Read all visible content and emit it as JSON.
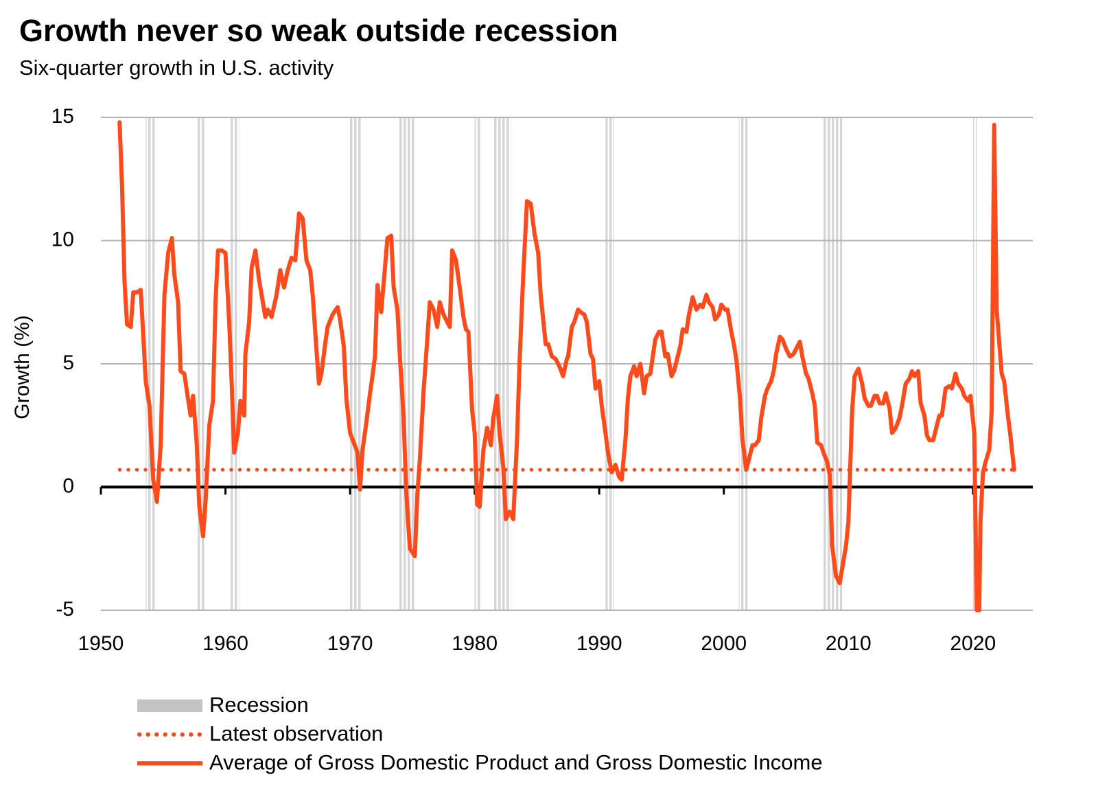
{
  "chart_data": {
    "type": "line",
    "title": "Growth never so weak outside recession",
    "subtitle": "Six-quarter  growth in U.S. activity",
    "y_label": "Growth (%)",
    "xlim": [
      1950,
      2024.8
    ],
    "xticks": [
      1950,
      1960,
      1970,
      1980,
      1990,
      2000,
      2010,
      2020
    ],
    "ylim": [
      -5,
      15
    ],
    "yticks": [
      -5,
      0,
      5,
      10,
      15
    ],
    "grid": true,
    "legend": "bottom",
    "series": [
      {
        "name": "Recession",
        "type": "band",
        "color": "#d6d6d6",
        "ranges": [
          [
            1953.6,
            1954.4
          ],
          [
            1957.7,
            1958.3
          ],
          [
            1960.3,
            1961.1
          ],
          [
            1969.9,
            1970.9
          ],
          [
            1973.9,
            1975.2
          ],
          [
            1980.0,
            1980.5
          ],
          [
            1981.5,
            1982.9
          ],
          [
            1990.5,
            1991.2
          ],
          [
            2001.2,
            2001.9
          ],
          [
            2007.9,
            2009.5
          ],
          [
            2020.0,
            2020.3
          ]
        ]
      },
      {
        "name": "Latest observation",
        "type": "line",
        "style": "dotted",
        "color": "#ff4a1c",
        "x": [
          1951.5,
          2023.3
        ],
        "values": [
          0.7,
          0.7
        ]
      },
      {
        "name": "Average of Gross Domestic Product and Gross Domestic Income",
        "type": "line",
        "style": "solid",
        "color": "#ff4a1c",
        "x": [
          1951.5,
          1951.7,
          1951.9,
          1952.1,
          1952.4,
          1952.6,
          1952.9,
          1953.2,
          1953.6,
          1953.9,
          1954.2,
          1954.5,
          1954.8,
          1955.1,
          1955.4,
          1955.7,
          1955.9,
          1956.2,
          1956.4,
          1956.7,
          1956.9,
          1957.2,
          1957.4,
          1957.7,
          1957.9,
          1958.2,
          1958.4,
          1958.7,
          1959.0,
          1959.2,
          1959.4,
          1959.7,
          1960.0,
          1960.3,
          1960.5,
          1960.7,
          1961.0,
          1961.2,
          1961.5,
          1961.6,
          1961.9,
          1962.1,
          1962.4,
          1962.7,
          1963.2,
          1963.4,
          1963.7,
          1964.1,
          1964.4,
          1964.7,
          1965.0,
          1965.3,
          1965.6,
          1965.9,
          1966.2,
          1966.5,
          1966.8,
          1967.0,
          1967.3,
          1967.5,
          1967.7,
          1968.0,
          1968.2,
          1968.6,
          1969.0,
          1969.2,
          1969.5,
          1969.7,
          1970.0,
          1970.3,
          1970.6,
          1970.8,
          1971.0,
          1971.3,
          1971.6,
          1971.8,
          1972.0,
          1972.2,
          1972.5,
          1972.8,
          1973.0,
          1973.3,
          1973.5,
          1973.8,
          1974.0,
          1974.3,
          1974.5,
          1974.8,
          1975.2,
          1975.4,
          1975.6,
          1975.9,
          1976.1,
          1976.4,
          1976.7,
          1977.0,
          1977.2,
          1977.5,
          1977.8,
          1978.0,
          1978.2,
          1978.5,
          1978.8,
          1979.1,
          1979.3,
          1979.5,
          1979.8,
          1980.0,
          1980.2,
          1980.4,
          1980.7,
          1981.0,
          1981.3,
          1981.5,
          1981.8,
          1982.0,
          1982.3,
          1982.5,
          1982.8,
          1983.1,
          1983.4,
          1983.6,
          1983.9,
          1984.2,
          1984.5,
          1984.8,
          1985.1,
          1985.3,
          1985.7,
          1985.9,
          1986.2,
          1986.5,
          1986.8,
          1987.1,
          1987.4,
          1987.5,
          1987.8,
          1988.0,
          1988.3,
          1988.5,
          1988.8,
          1989.0,
          1989.3,
          1989.5,
          1989.7,
          1990.0,
          1990.2,
          1990.5,
          1990.7,
          1991.0,
          1991.3,
          1991.6,
          1991.8,
          1992.1,
          1992.3,
          1992.5,
          1992.8,
          1993.0,
          1993.3,
          1993.6,
          1993.8,
          1994.1,
          1994.3,
          1994.5,
          1994.8,
          1995.0,
          1995.3,
          1995.5,
          1995.8,
          1996.0,
          1996.3,
          1996.5,
          1996.7,
          1997.0,
          1997.2,
          1997.5,
          1997.8,
          1998.1,
          1998.3,
          1998.6,
          1998.8,
          1999.1,
          1999.3,
          1999.6,
          1999.8,
          2000.1,
          2000.3,
          2000.6,
          2000.8,
          2001.0,
          2001.3,
          2001.5,
          2001.8,
          2002.0,
          2002.3,
          2002.5,
          2002.8,
          2003.0,
          2003.3,
          2003.5,
          2003.8,
          2004.0,
          2004.2,
          2004.5,
          2004.7,
          2005.0,
          2005.3,
          2005.6,
          2005.8,
          2006.1,
          2006.3,
          2006.6,
          2006.8,
          2007.1,
          2007.3,
          2007.5,
          2007.8,
          2008.0,
          2008.3,
          2008.5,
          2008.7,
          2009.0,
          2009.3,
          2009.5,
          2009.8,
          2010.0,
          2010.3,
          2010.5,
          2010.8,
          2011.1,
          2011.3,
          2011.6,
          2011.8,
          2012.1,
          2012.3,
          2012.5,
          2012.8,
          2013.0,
          2013.3,
          2013.5,
          2013.8,
          2014.1,
          2014.3,
          2014.6,
          2014.9,
          2015.1,
          2015.3,
          2015.6,
          2015.8,
          2016.1,
          2016.3,
          2016.5,
          2016.8,
          2017.0,
          2017.3,
          2017.5,
          2017.8,
          2018.1,
          2018.3,
          2018.6,
          2018.8,
          2019.1,
          2019.3,
          2019.6,
          2019.8,
          2020.1,
          2020.3,
          2020.5,
          2020.6,
          2020.8,
          2021.0,
          2021.3,
          2021.5,
          2021.7,
          2021.9,
          2022.3,
          2022.5,
          2022.8,
          2023.0,
          2023.3
        ],
        "values": [
          14.8,
          12.2,
          8.3,
          6.6,
          6.5,
          7.9,
          7.9,
          8.0,
          4.3,
          3.3,
          0.3,
          -0.6,
          1.7,
          7.8,
          9.5,
          10.1,
          8.6,
          7.5,
          4.7,
          4.6,
          3.9,
          2.9,
          3.7,
          1.7,
          -0.8,
          -2.0,
          -0.6,
          2.5,
          3.5,
          7.5,
          9.6,
          9.6,
          9.5,
          6.7,
          4.2,
          1.4,
          2.2,
          3.5,
          2.9,
          5.4,
          6.7,
          8.9,
          9.6,
          8.4,
          6.9,
          7.2,
          6.9,
          7.8,
          8.8,
          8.1,
          8.8,
          9.3,
          9.2,
          11.1,
          10.9,
          9.2,
          8.8,
          7.8,
          5.6,
          4.2,
          4.6,
          5.8,
          6.5,
          7.0,
          7.3,
          6.8,
          5.7,
          3.6,
          2.2,
          1.8,
          1.4,
          -0.1,
          1.5,
          2.6,
          3.8,
          4.5,
          5.3,
          8.2,
          7.1,
          8.9,
          10.1,
          10.2,
          8.1,
          7.2,
          5.3,
          2.8,
          -0.1,
          -2.5,
          -2.8,
          -0.3,
          1.1,
          3.9,
          5.3,
          7.5,
          7.2,
          6.5,
          7.5,
          7.0,
          6.7,
          6.5,
          9.6,
          9.2,
          8.1,
          6.9,
          6.4,
          6.3,
          3.1,
          2.2,
          -0.7,
          -0.8,
          1.5,
          2.4,
          1.7,
          2.8,
          3.7,
          2.2,
          0.8,
          -1.3,
          -1.0,
          -1.3,
          1.9,
          5.0,
          8.6,
          11.6,
          11.5,
          10.3,
          9.5,
          7.8,
          5.8,
          5.8,
          5.3,
          5.2,
          4.9,
          4.5,
          5.2,
          5.3,
          6.5,
          6.7,
          7.2,
          7.1,
          7.0,
          6.7,
          5.4,
          5.2,
          4.0,
          4.3,
          3.3,
          2.2,
          1.4,
          0.6,
          0.9,
          0.4,
          0.3,
          1.9,
          3.6,
          4.5,
          4.9,
          4.5,
          5.0,
          3.8,
          4.5,
          4.6,
          5.3,
          6.0,
          6.3,
          6.3,
          5.3,
          5.4,
          4.5,
          4.7,
          5.3,
          5.7,
          6.4,
          6.3,
          7.0,
          7.7,
          7.2,
          7.4,
          7.3,
          7.8,
          7.5,
          7.3,
          6.8,
          7.0,
          7.4,
          7.2,
          7.2,
          6.3,
          5.8,
          5.2,
          3.6,
          1.9,
          0.7,
          1.1,
          1.7,
          1.7,
          1.9,
          2.8,
          3.7,
          4.0,
          4.3,
          4.7,
          5.4,
          6.1,
          6.0,
          5.6,
          5.3,
          5.4,
          5.6,
          5.9,
          5.3,
          4.6,
          4.4,
          3.8,
          3.3,
          1.8,
          1.7,
          1.4,
          1.0,
          0.5,
          -2.4,
          -3.6,
          -3.9,
          -3.3,
          -2.4,
          -1.4,
          3.1,
          4.5,
          4.8,
          4.2,
          3.6,
          3.3,
          3.3,
          3.7,
          3.7,
          3.4,
          3.4,
          3.8,
          3.2,
          2.2,
          2.4,
          2.8,
          3.3,
          4.2,
          4.4,
          4.7,
          4.5,
          4.7,
          3.4,
          2.9,
          2.1,
          1.9,
          1.9,
          2.3,
          2.9,
          2.9,
          4.0,
          4.1,
          4.0,
          4.6,
          4.2,
          4.0,
          3.7,
          3.5,
          3.7,
          2.2,
          -5.0,
          -5.0,
          -1.4,
          0.6,
          1.0,
          1.5,
          3.1,
          14.7,
          7.2,
          4.6,
          4.3,
          2.9,
          2.1,
          0.7
        ]
      }
    ]
  }
}
